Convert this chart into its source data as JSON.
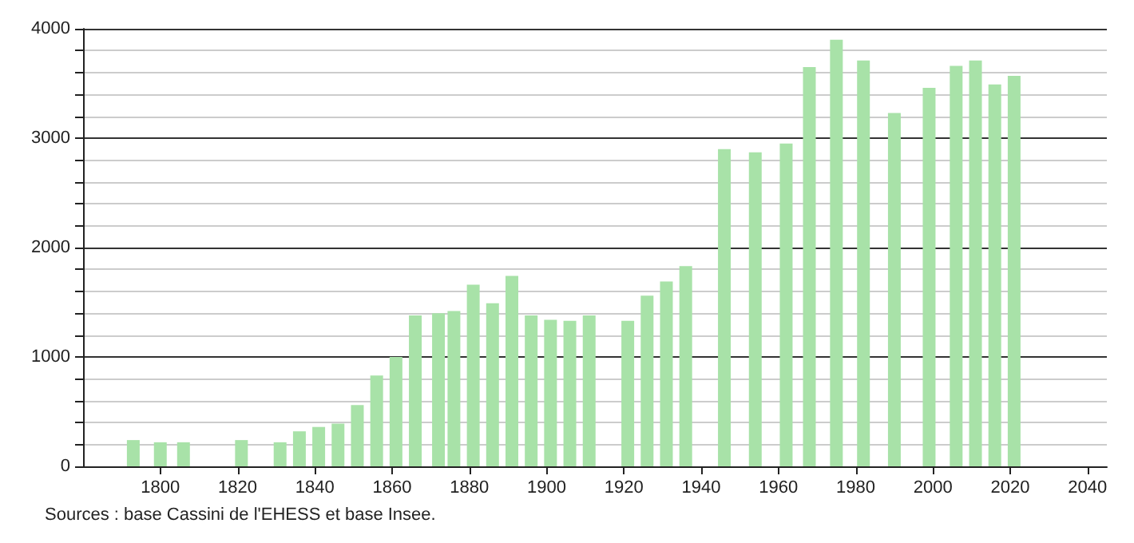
{
  "chart_data": {
    "type": "bar",
    "color": "#a8e2a8",
    "x": [
      1793,
      1800,
      1806,
      1821,
      1831,
      1836,
      1841,
      1846,
      1851,
      1856,
      1861,
      1866,
      1872,
      1876,
      1881,
      1886,
      1891,
      1896,
      1901,
      1906,
      1911,
      1921,
      1926,
      1931,
      1936,
      1946,
      1954,
      1962,
      1968,
      1975,
      1982,
      1990,
      1999,
      2006,
      2011,
      2016,
      2021
    ],
    "values": [
      240,
      220,
      220,
      240,
      220,
      320,
      360,
      390,
      560,
      830,
      1000,
      1380,
      1400,
      1420,
      1660,
      1490,
      1740,
      1380,
      1340,
      1330,
      1380,
      1330,
      1560,
      1690,
      1830,
      2900,
      2870,
      2950,
      3650,
      3900,
      3710,
      3230,
      3460,
      3660,
      3710,
      3490,
      3570
    ],
    "xlim": [
      1780,
      2045
    ],
    "xticks": [
      1800,
      1820,
      1840,
      1860,
      1880,
      1900,
      1920,
      1940,
      1960,
      1980,
      2000,
      2020,
      2040
    ],
    "ylim": [
      0,
      4000
    ],
    "yticks": [
      0,
      {
        "value": 200,
        "label": null
      },
      {
        "value": 400,
        "label": null
      },
      {
        "value": 600,
        "label": null
      },
      {
        "value": 800,
        "label": null
      },
      1000,
      {
        "value": 1200,
        "label": null
      },
      {
        "value": 1400,
        "label": null
      },
      {
        "value": 1600,
        "label": null
      },
      {
        "value": 1800,
        "label": null
      },
      2000,
      {
        "value": 2200,
        "label": null
      },
      {
        "value": 2400,
        "label": null
      },
      {
        "value": 2600,
        "label": null
      },
      {
        "value": 2800,
        "label": null
      },
      3000,
      {
        "value": 3200,
        "label": null
      },
      {
        "value": 3400,
        "label": null
      },
      {
        "value": 3600,
        "label": null
      },
      {
        "value": 3800,
        "label": null
      },
      4000
    ],
    "grid": "y",
    "annotations": [
      "Sources : base Cassini de l'EHESS et base Insee."
    ]
  }
}
